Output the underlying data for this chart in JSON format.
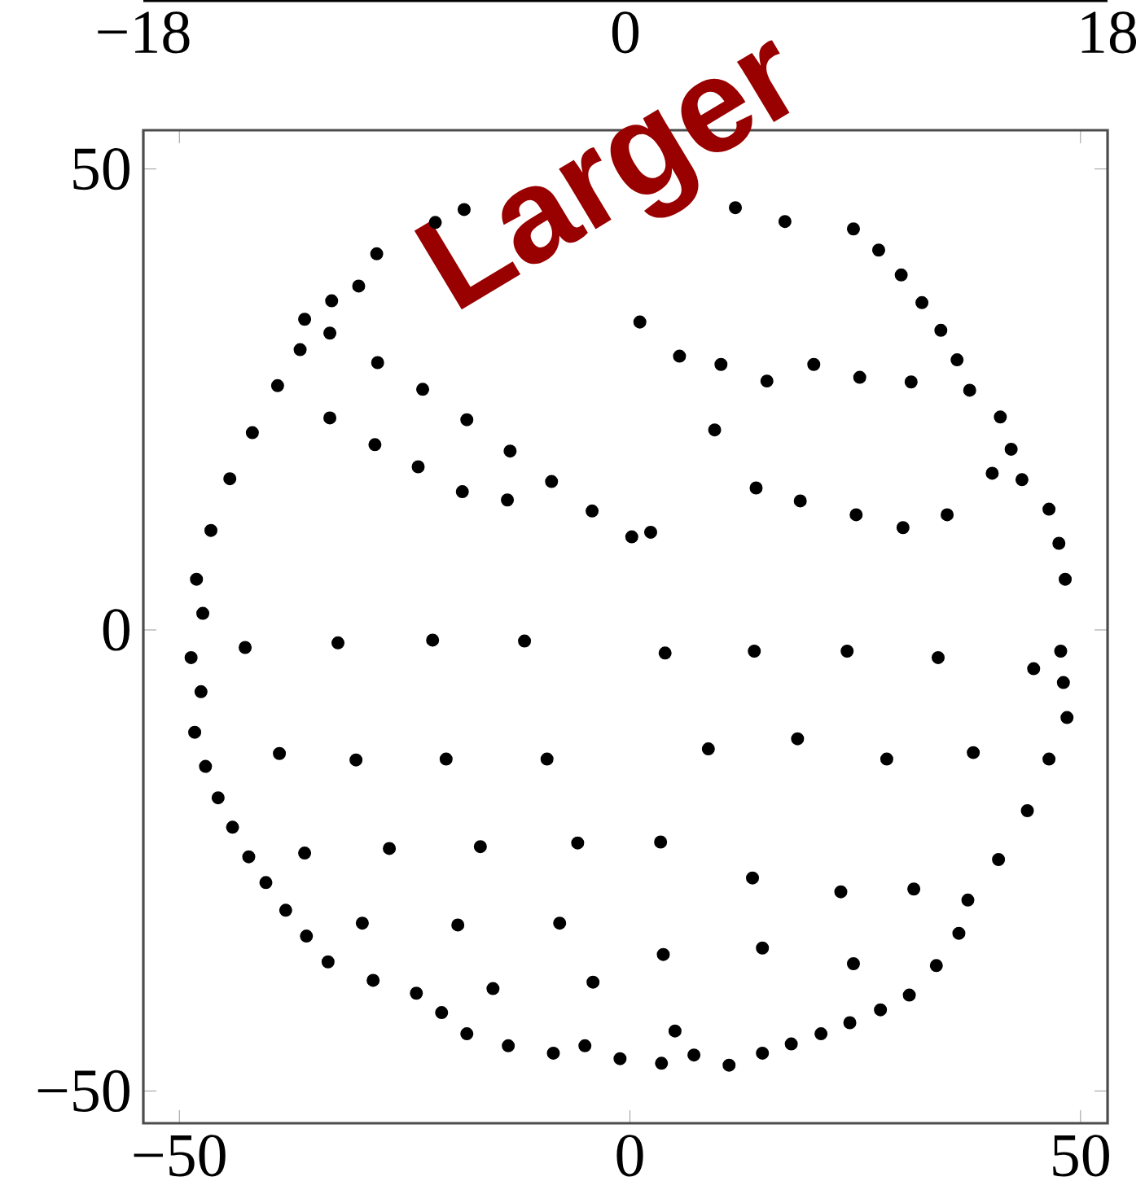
{
  "chart_data": {
    "type": "scatter",
    "annotations": [
      "Larger"
    ],
    "xlim": [
      -54,
      53
    ],
    "ylim": [
      -53.5,
      54.2
    ],
    "xticks": [
      {
        "value": -50,
        "label": "−50"
      },
      0,
      50
    ],
    "yticks": [
      {
        "value": -50,
        "label": "−50"
      },
      0,
      50
    ],
    "x2lim": [
      -18,
      18
    ],
    "x2ticks": [
      {
        "value": -18,
        "label": "−18"
      },
      0,
      18
    ],
    "grid": false,
    "series": [
      {
        "color": "#000000",
        "x": [
          -18.4,
          -21.6,
          -28.1,
          -30.1,
          -33.1,
          -36.1,
          -36.6,
          -39.1,
          -41.9,
          -44.4,
          -46.5,
          -48.1,
          -47.4,
          11.7,
          17.2,
          24.8,
          27.6,
          30.1,
          32.4,
          34.5,
          36.3,
          37.7,
          41.1,
          42.3,
          43.5,
          46.5,
          47.6,
          48.3,
          47.8,
          48.1,
          48.5,
          46.5,
          44.1,
          40.9,
          37.5,
          36.5,
          34.0,
          31.0,
          27.8,
          24.4,
          21.2,
          17.9,
          14.7,
          11.0,
          7.1,
          3.5,
          -48.7,
          -47.6,
          -48.3,
          -47.1,
          -45.7,
          -44.1,
          -42.3,
          -40.4,
          -38.2,
          -35.9,
          -33.5,
          -28.5,
          -23.7,
          -20.9,
          -18.1,
          -13.5,
          -8.5,
          -5.0,
          -1.1,
          -33.3,
          -28.0,
          -23.0,
          -18.1,
          -13.3,
          -8.7,
          -4.2,
          0.2,
          -33.3,
          -28.3,
          -23.5,
          -18.6,
          -13.6,
          1.1,
          5.5,
          10.1,
          15.2,
          20.4,
          25.5,
          31.2,
          9.4,
          14.0,
          18.9,
          25.1,
          30.3,
          35.2,
          40.2,
          2.3,
          -42.7,
          -32.4,
          -21.9,
          -11.7,
          -38.9,
          -30.4,
          -20.4,
          -9.2,
          -36.1,
          -26.7,
          -16.6,
          -5.8,
          -29.7,
          -19.1,
          -7.8,
          -15.2,
          -4.1,
          3.9,
          13.8,
          24.1,
          34.2,
          44.8,
          8.7,
          18.6,
          28.5,
          38.1,
          3.4,
          13.6,
          23.4,
          31.5,
          3.7,
          14.7,
          24.8,
          5.0
        ],
        "values": [
          45.6,
          44.2,
          40.8,
          37.3,
          35.7,
          33.7,
          30.4,
          26.5,
          21.4,
          16.4,
          10.8,
          5.5,
          1.8,
          45.8,
          44.3,
          43.5,
          41.2,
          38.5,
          35.5,
          32.5,
          29.3,
          26.0,
          23.1,
          19.6,
          16.3,
          13.1,
          9.4,
          5.5,
          -2.3,
          -5.7,
          -9.5,
          -14.0,
          -19.6,
          -24.9,
          -29.3,
          -32.9,
          -36.4,
          -39.6,
          -41.2,
          -42.6,
          -43.8,
          -44.9,
          -45.9,
          -47.2,
          -46.1,
          -47.0,
          -3.0,
          -6.7,
          -11.1,
          -14.8,
          -18.2,
          -21.4,
          -24.6,
          -27.4,
          -30.4,
          -33.2,
          -36.0,
          -38.0,
          -39.4,
          -41.5,
          -43.8,
          -45.1,
          -45.9,
          -45.1,
          -46.5,
          32.2,
          29.0,
          26.1,
          22.8,
          19.4,
          16.1,
          12.9,
          10.1,
          23.0,
          20.1,
          17.7,
          15.0,
          14.1,
          33.4,
          29.7,
          28.8,
          27.0,
          28.8,
          27.4,
          26.9,
          21.7,
          15.4,
          14.0,
          12.5,
          11.1,
          12.5,
          17.0,
          10.6,
          -1.9,
          -1.4,
          -1.1,
          -1.2,
          -13.4,
          -14.1,
          -14.0,
          -14.0,
          -24.2,
          -23.7,
          -23.5,
          -23.1,
          -31.8,
          -32.0,
          -31.8,
          -38.9,
          -38.2,
          -2.5,
          -2.3,
          -2.3,
          -3.0,
          -4.2,
          -12.9,
          -11.8,
          -14.0,
          -13.3,
          -23.0,
          -26.9,
          -28.4,
          -28.1,
          -35.2,
          -34.5,
          -36.2,
          -43.5
        ]
      }
    ]
  }
}
